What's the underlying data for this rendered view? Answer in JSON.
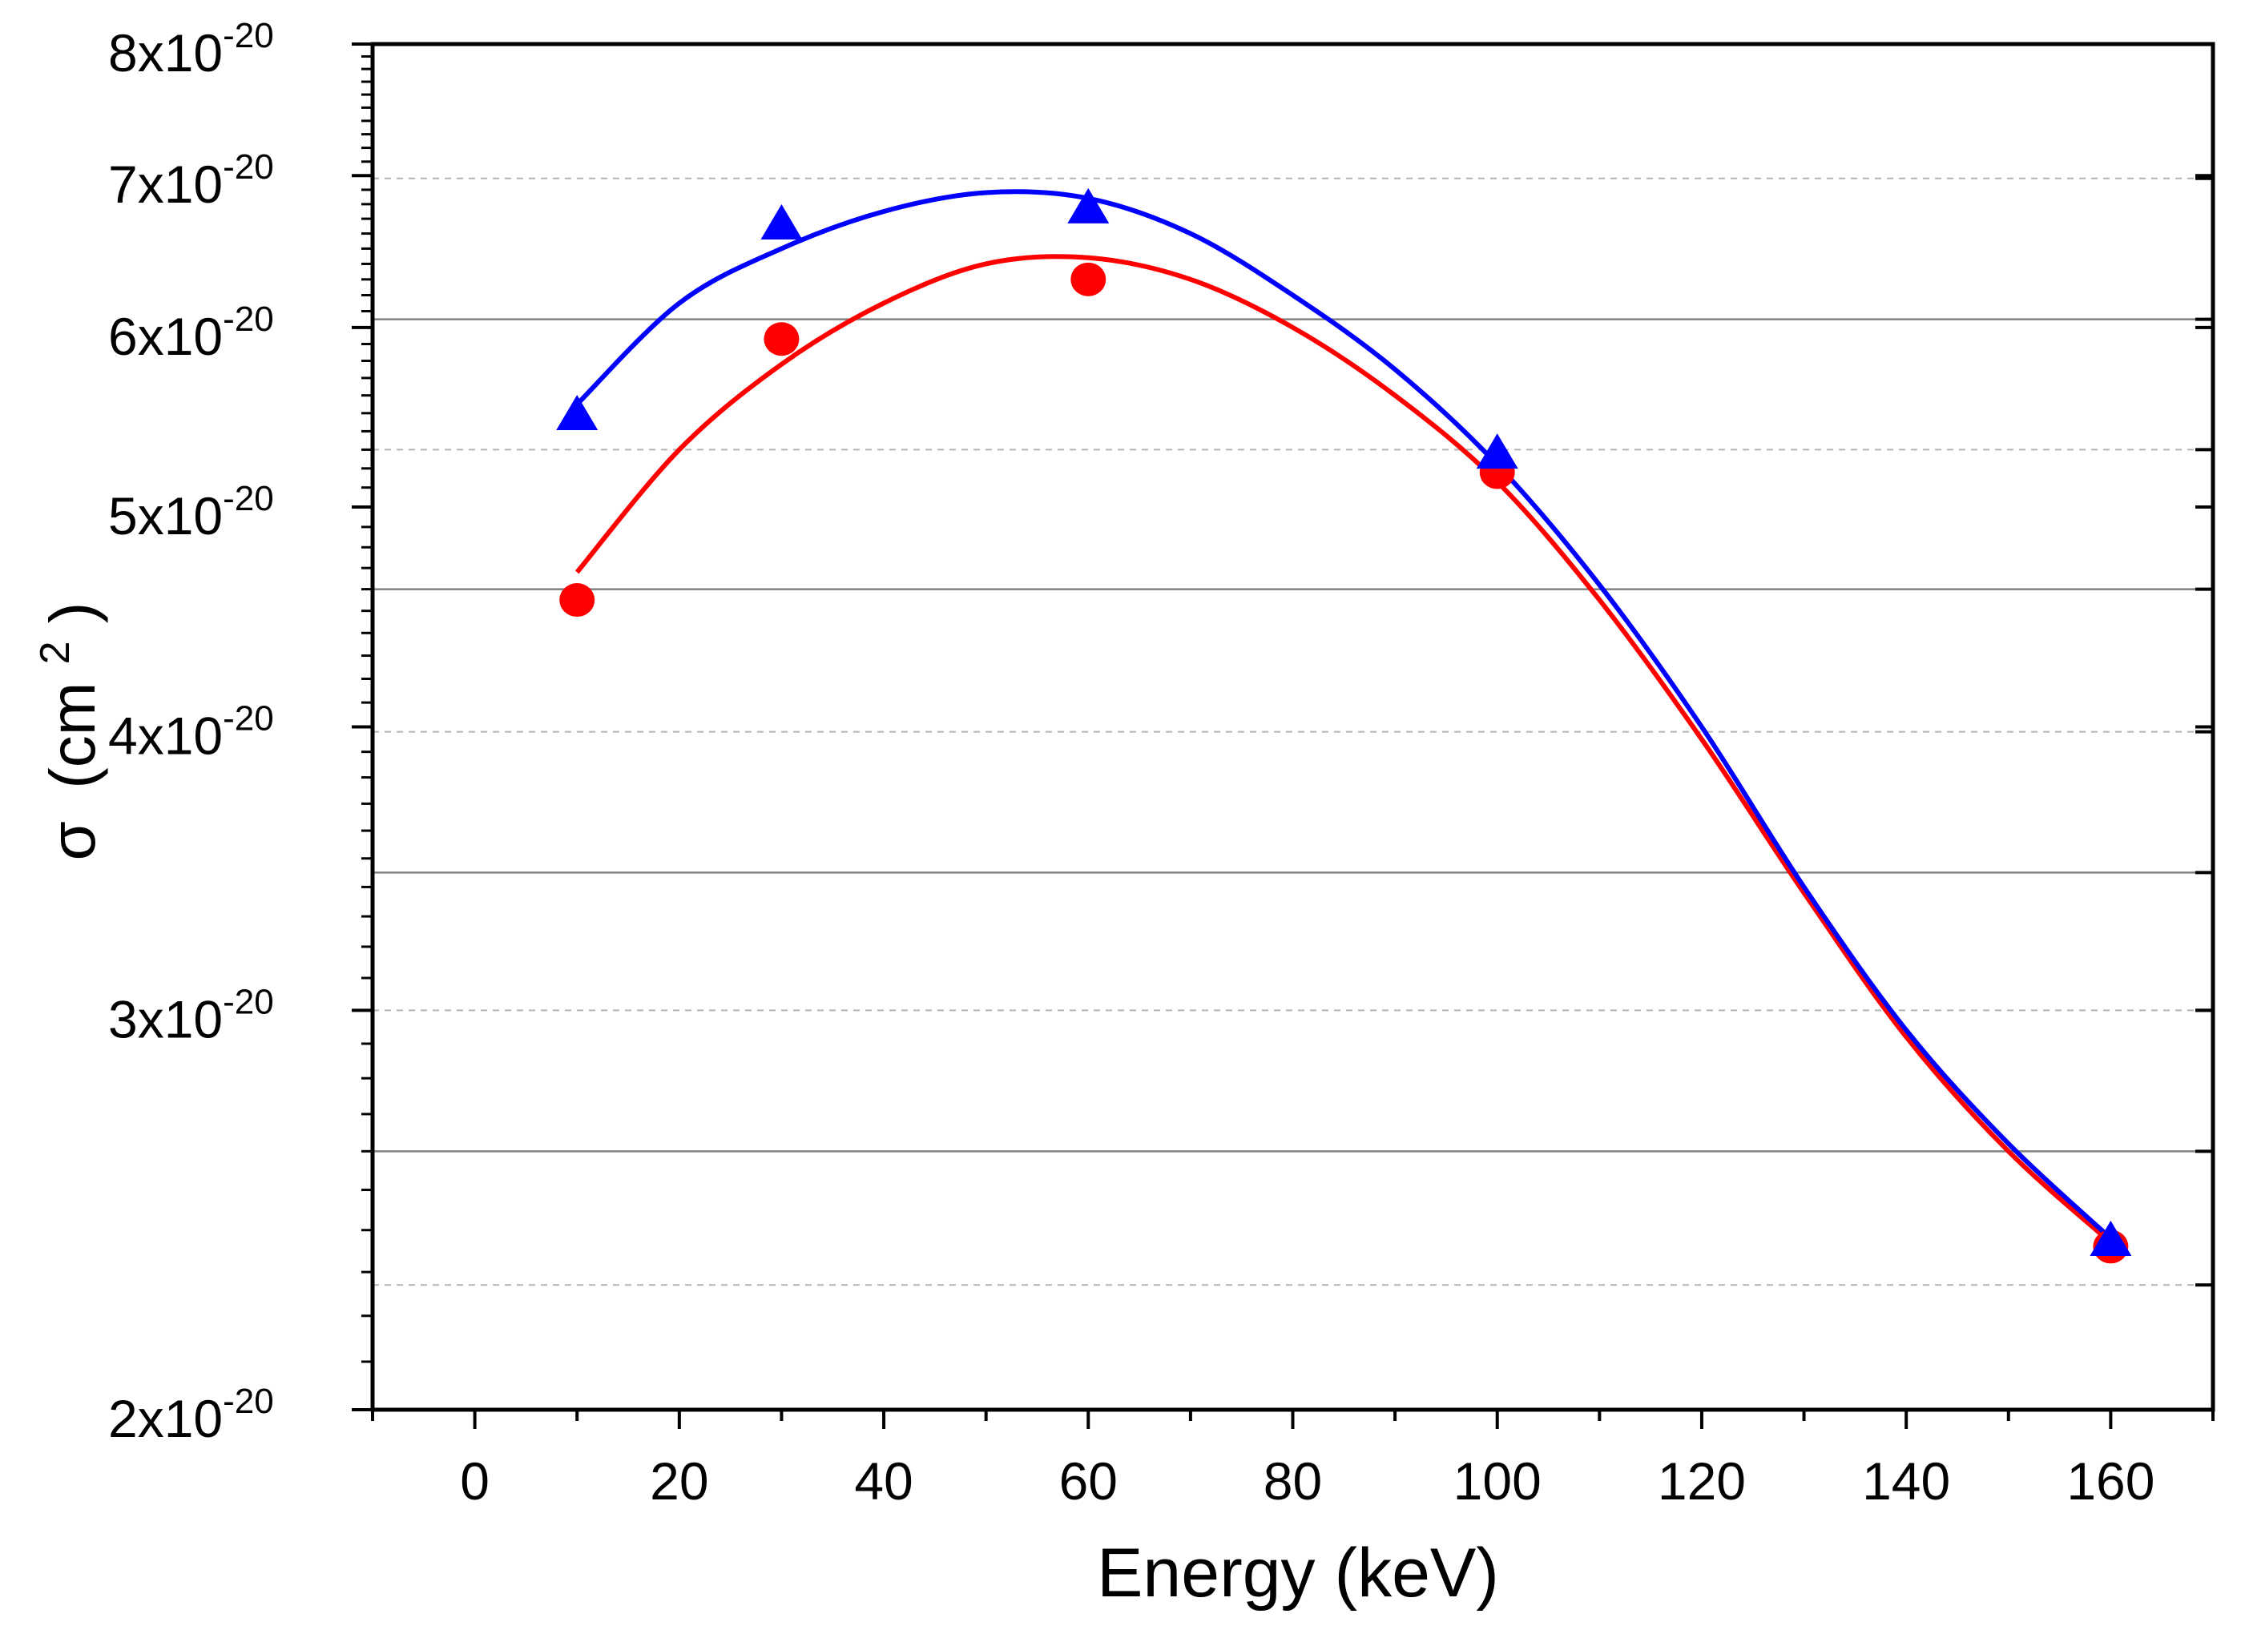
{
  "chart_data": {
    "type": "scatter",
    "title": "",
    "xlabel": "Energy (keV)",
    "ylabel_symbol": "σ",
    "ylabel_unit_open": "(cm",
    "ylabel_unit_sup": "2",
    "ylabel_unit_close": ")",
    "yscale": "log",
    "xlim": [
      -10,
      170
    ],
    "ylim": [
      2e-20,
      8e-20
    ],
    "x_ticks": [
      0,
      20,
      40,
      60,
      80,
      100,
      120,
      140,
      160
    ],
    "x_tick_labels": [
      "0",
      "20",
      "40",
      "60",
      "80",
      "100",
      "120",
      "140",
      "160"
    ],
    "y_ticks": [
      {
        "value": 2e-20,
        "mantissa": "2x10",
        "exponent": "-20"
      },
      {
        "value": 3e-20,
        "mantissa": "3x10",
        "exponent": "-20"
      },
      {
        "value": 4e-20,
        "mantissa": "4x10",
        "exponent": "-20"
      },
      {
        "value": 5e-20,
        "mantissa": "5x10",
        "exponent": "-20"
      },
      {
        "value": 6e-20,
        "mantissa": "6x10",
        "exponent": "-20"
      },
      {
        "value": 7e-20,
        "mantissa": "7x10",
        "exponent": "-20"
      },
      {
        "value": 8e-20,
        "mantissa": "8x10",
        "exponent": "-20"
      }
    ],
    "grid_solid": [
      2.6e-20,
      3.45e-20,
      4.6e-20,
      6.05e-20
    ],
    "grid_dashed": [
      2.27e-20,
      3e-20,
      3.98e-20,
      5.3e-20,
      6.98e-20
    ],
    "series": [
      {
        "name": "red circles",
        "marker": "circle",
        "color": "#ff0000",
        "x": [
          10,
          30,
          60,
          100,
          160
        ],
        "y": [
          4.55e-20,
          5.93e-20,
          6.3e-20,
          5.18e-20,
          2.36e-20
        ],
        "fit": {
          "x": [
            10,
            20,
            30,
            40,
            50,
            60,
            70,
            80,
            90,
            100,
            110,
            120,
            130,
            140,
            150,
            160
          ],
          "y": [
            4.68e-20,
            5.3e-20,
            5.78e-20,
            6.15e-20,
            6.4e-20,
            6.44e-20,
            6.3e-20,
            6e-20,
            5.6e-20,
            5.13e-20,
            4.55e-20,
            3.95e-20,
            3.38e-20,
            2.92e-20,
            2.6e-20,
            2.37e-20
          ]
        }
      },
      {
        "name": "blue triangles",
        "marker": "triangle",
        "color": "#0000ff",
        "x": [
          10,
          30,
          60,
          100,
          160
        ],
        "y": [
          5.48e-20,
          6.65e-20,
          6.76e-20,
          5.27e-20,
          2.37e-20
        ],
        "fit": {
          "x": [
            10,
            20,
            30,
            40,
            50,
            60,
            70,
            80,
            90,
            100,
            110,
            120,
            130,
            140,
            150,
            160
          ],
          "y": [
            5.55e-20,
            6.15e-20,
            6.5e-20,
            6.75e-20,
            6.88e-20,
            6.84e-20,
            6.6e-20,
            6.2e-20,
            5.75e-20,
            5.22e-20,
            4.62e-20,
            4e-20,
            3.4e-20,
            2.94e-20,
            2.62e-20,
            2.38e-20
          ]
        }
      }
    ]
  }
}
